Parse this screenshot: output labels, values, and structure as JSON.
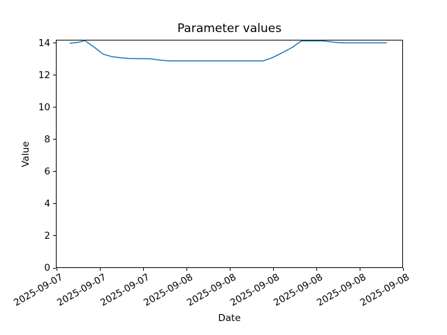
{
  "chart_data": {
    "type": "line",
    "title": "Parameter values",
    "xlabel": "Date",
    "ylabel": "Value",
    "grid": false,
    "legend": null,
    "line_color": "#1f77b4",
    "axis_color": "#000000",
    "background_color": "#ffffff",
    "ylim": [
      0,
      14.2
    ],
    "xlim": [
      -0.08,
      32.0
    ],
    "y_ticks": [
      0,
      2,
      4,
      6,
      8,
      10,
      12,
      14
    ],
    "x_ticks": [
      {
        "pos": 0,
        "label": "2025-09-07"
      },
      {
        "pos": 4,
        "label": "2025-09-07"
      },
      {
        "pos": 8,
        "label": "2025-09-07"
      },
      {
        "pos": 12,
        "label": "2025-09-08"
      },
      {
        "pos": 16,
        "label": "2025-09-08"
      },
      {
        "pos": 20,
        "label": "2025-09-08"
      },
      {
        "pos": 24,
        "label": "2025-09-08"
      },
      {
        "pos": 28,
        "label": "2025-09-08"
      },
      {
        "pos": 32,
        "label": "2025-09-08"
      }
    ],
    "x_tick_rotation_deg": -30,
    "series": [
      {
        "name": "Parameter",
        "points": [
          [
            1.2,
            13.98
          ],
          [
            2.0,
            14.05
          ],
          [
            2.6,
            14.15
          ],
          [
            3.5,
            13.72
          ],
          [
            4.3,
            13.3
          ],
          [
            5.1,
            13.15
          ],
          [
            5.9,
            13.08
          ],
          [
            6.7,
            13.04
          ],
          [
            8.6,
            13.02
          ],
          [
            9.6,
            12.93
          ],
          [
            10.5,
            12.89
          ],
          [
            19.1,
            12.89
          ],
          [
            19.9,
            13.08
          ],
          [
            20.8,
            13.38
          ],
          [
            21.8,
            13.74
          ],
          [
            22.6,
            14.13
          ],
          [
            24.6,
            14.13
          ],
          [
            25.5,
            14.06
          ],
          [
            26.3,
            14.01
          ],
          [
            30.5,
            14.01
          ]
        ]
      }
    ]
  }
}
